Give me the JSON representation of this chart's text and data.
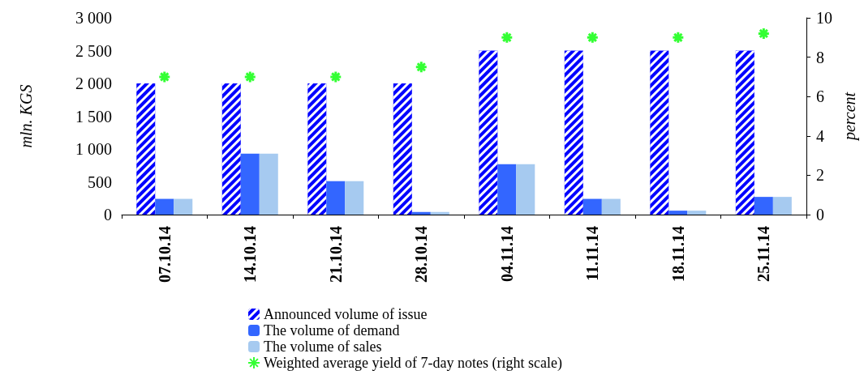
{
  "chart_data": {
    "type": "bar",
    "categories": [
      "07.10.14",
      "14.10.14",
      "21.10.14",
      "28.10.14",
      "04.11.14",
      "11.11.14",
      "18.11.14",
      "25.11.14"
    ],
    "ylabel": "mln. KGS",
    "y2label": "percent",
    "series": [
      {
        "name": "Announced volume of issue",
        "color": "#0000ff",
        "values": [
          2000,
          2000,
          2000,
          2000,
          2500,
          2500,
          2500,
          2500
        ]
      },
      {
        "name": "The volume of demand",
        "color": "#3366ff",
        "values": [
          240,
          930,
          510,
          40,
          770,
          240,
          60,
          270
        ]
      },
      {
        "name": "The volume of sales",
        "color": "#a6caf0",
        "values": [
          240,
          930,
          510,
          40,
          770,
          240,
          60,
          270
        ]
      },
      {
        "name": "Weighted average yield of 7-day notes (right scale)",
        "type": "scatter",
        "axis": "y2",
        "marker": "cross",
        "color": "#00ff00",
        "values": [
          7.0,
          7.0,
          7.0,
          7.5,
          9.0,
          9.0,
          9.0,
          9.2
        ]
      }
    ],
    "ylim": [
      0,
      3000
    ],
    "yticks": [
      0,
      {
        "value": 500,
        "label": "500"
      },
      {
        "value": 1000,
        "label": "1 000"
      },
      {
        "value": 1500,
        "label": "1 500"
      },
      {
        "value": 2000,
        "label": "2 000"
      },
      {
        "value": 2500,
        "label": "2 500"
      },
      {
        "value": 3000,
        "label": "3 000"
      }
    ],
    "y2lim": [
      0,
      10
    ],
    "y2ticks": [
      0,
      2,
      4,
      6,
      8,
      10
    ],
    "grid": false,
    "legend": "bottom"
  }
}
